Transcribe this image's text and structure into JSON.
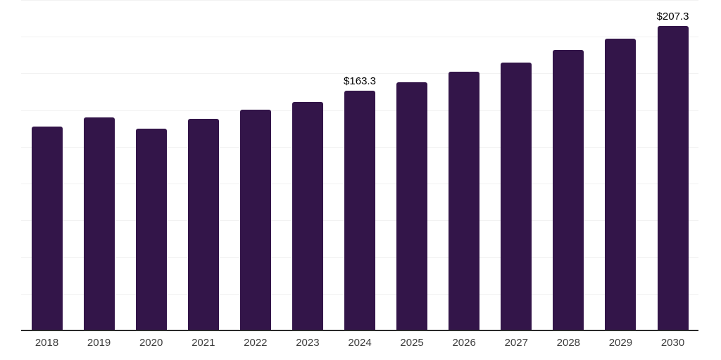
{
  "chart_data": {
    "type": "bar",
    "title": "",
    "xlabel": "",
    "ylabel": "",
    "categories": [
      "2018",
      "2019",
      "2020",
      "2021",
      "2022",
      "2023",
      "2024",
      "2025",
      "2026",
      "2027",
      "2028",
      "2029",
      "2030"
    ],
    "values": [
      139.0,
      145.2,
      137.5,
      144.1,
      150.5,
      155.6,
      163.3,
      169.1,
      176.3,
      182.4,
      191.0,
      198.7,
      207.3
    ],
    "labeled_bars": [
      {
        "category": "2024",
        "text": "$163.3"
      },
      {
        "category": "2030",
        "text": "$207.3"
      }
    ],
    "ylim": [
      0,
      225
    ],
    "grid_step": 25,
    "grid": "on",
    "legend": "none",
    "y_axis_tick_labels": "none",
    "colors": {
      "bar": "#331549",
      "axis_line": "#2a2a2a",
      "gridline": "#f2f2f2",
      "tick_label": "#3d3d3d",
      "value_label": "#000000",
      "background": "#ffffff"
    }
  }
}
